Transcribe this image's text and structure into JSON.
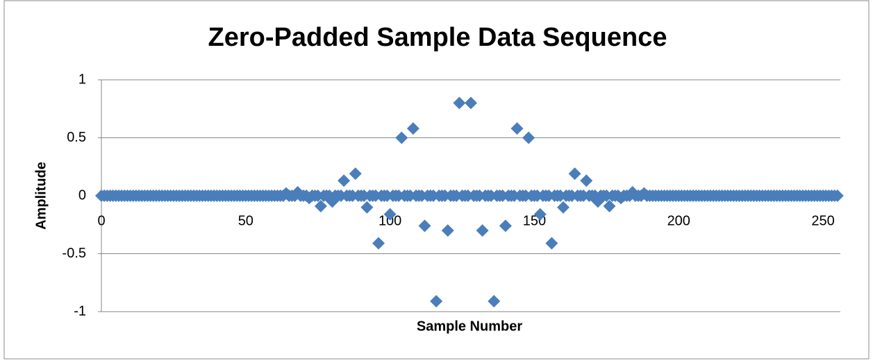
{
  "chart_data": {
    "type": "scatter",
    "title": "Zero-Padded  Sample Data Sequence",
    "x_label": "Sample Number",
    "y_label": "Amplitude",
    "color": "#4a7ebb",
    "marker": "diamond",
    "grid": true,
    "xlim": [
      0,
      256
    ],
    "xticks": [
      0,
      50,
      100,
      150,
      200,
      250
    ],
    "ylim": [
      -1,
      1
    ],
    "yticks": [
      1,
      0.5,
      0,
      -0.5,
      -1
    ],
    "x": [
      0,
      1,
      2,
      3,
      4,
      5,
      6,
      7,
      8,
      9,
      10,
      11,
      12,
      13,
      14,
      15,
      16,
      17,
      18,
      19,
      20,
      21,
      22,
      23,
      24,
      25,
      26,
      27,
      28,
      29,
      30,
      31,
      32,
      33,
      34,
      35,
      36,
      37,
      38,
      39,
      40,
      41,
      42,
      43,
      44,
      45,
      46,
      47,
      48,
      49,
      50,
      51,
      52,
      53,
      54,
      55,
      56,
      57,
      58,
      59,
      60,
      61,
      62,
      63,
      64,
      65,
      66,
      67,
      68,
      69,
      70,
      71,
      72,
      73,
      74,
      75,
      76,
      77,
      78,
      79,
      80,
      81,
      82,
      83,
      84,
      85,
      86,
      87,
      88,
      89,
      90,
      91,
      92,
      93,
      94,
      95,
      96,
      97,
      98,
      99,
      100,
      101,
      102,
      103,
      104,
      105,
      106,
      107,
      108,
      109,
      110,
      111,
      112,
      113,
      114,
      115,
      116,
      117,
      118,
      119,
      120,
      121,
      122,
      123,
      124,
      125,
      126,
      127,
      128,
      129,
      130,
      131,
      132,
      133,
      134,
      135,
      136,
      137,
      138,
      139,
      140,
      141,
      142,
      143,
      144,
      145,
      146,
      147,
      148,
      149,
      150,
      151,
      152,
      153,
      154,
      155,
      156,
      157,
      158,
      159,
      160,
      161,
      162,
      163,
      164,
      165,
      166,
      167,
      168,
      169,
      170,
      171,
      172,
      173,
      174,
      175,
      176,
      177,
      178,
      179,
      180,
      181,
      182,
      183,
      184,
      185,
      186,
      187,
      188,
      189,
      190,
      191,
      192,
      193,
      194,
      195,
      196,
      197,
      198,
      199,
      200,
      201,
      202,
      203,
      204,
      205,
      206,
      207,
      208,
      209,
      210,
      211,
      212,
      213,
      214,
      215,
      216,
      217,
      218,
      219,
      220,
      221,
      222,
      223,
      224,
      225,
      226,
      227,
      228,
      229,
      230,
      231,
      232,
      233,
      234,
      235,
      236,
      237,
      238,
      239,
      240,
      241,
      242,
      243,
      244,
      245,
      246,
      247,
      248,
      249,
      250,
      251,
      252,
      253,
      254,
      255
    ],
    "values": [
      0,
      0,
      0,
      0,
      0,
      0,
      0,
      0,
      0,
      0,
      0,
      0,
      0,
      0,
      0,
      0,
      0,
      0,
      0,
      0,
      0,
      0,
      0,
      0,
      0,
      0,
      0,
      0,
      0,
      0,
      0,
      0,
      0,
      0,
      0,
      0,
      0,
      0,
      0,
      0,
      0,
      0,
      0,
      0,
      0,
      0,
      0,
      0,
      0,
      0,
      0,
      0,
      0,
      0,
      0,
      0,
      0,
      0,
      0,
      0,
      0,
      0,
      0,
      0,
      0.02,
      0,
      0,
      0,
      0.03,
      0,
      0,
      0,
      -0.02,
      0,
      0,
      0,
      -0.09,
      0,
      0,
      0,
      -0.05,
      0,
      0,
      0,
      0.13,
      0,
      0,
      0,
      0.19,
      0,
      0,
      0,
      -0.1,
      0,
      0,
      0,
      -0.41,
      0,
      0,
      0,
      -0.16,
      0,
      0,
      0,
      0.5,
      0,
      0,
      0,
      0.58,
      0,
      0,
      0,
      -0.26,
      0,
      0,
      0,
      -0.91,
      0,
      0,
      0,
      -0.3,
      0,
      0,
      0,
      0.8,
      0,
      0,
      0,
      0.8,
      0,
      0,
      0,
      -0.3,
      0,
      0,
      0,
      -0.91,
      0,
      0,
      0,
      -0.26,
      0,
      0,
      0,
      0.58,
      0,
      0,
      0,
      0.5,
      0,
      0,
      0,
      -0.16,
      0,
      0,
      0,
      -0.41,
      0,
      0,
      0,
      -0.1,
      0,
      0,
      0,
      0.19,
      0,
      0,
      0,
      0.13,
      0,
      0,
      0,
      -0.05,
      0,
      0,
      0,
      -0.09,
      0,
      0,
      0,
      -0.02,
      0,
      0,
      0,
      0.03,
      0,
      0,
      0,
      0.02,
      0,
      0,
      0,
      0,
      0,
      0,
      0,
      0,
      0,
      0,
      0,
      0,
      0,
      0,
      0,
      0,
      0,
      0,
      0,
      0,
      0,
      0,
      0,
      0,
      0,
      0,
      0,
      0,
      0,
      0,
      0,
      0,
      0,
      0,
      0,
      0,
      0,
      0,
      0,
      0,
      0,
      0,
      0,
      0,
      0,
      0,
      0,
      0,
      0,
      0,
      0,
      0,
      0,
      0,
      0,
      0,
      0,
      0,
      0,
      0,
      0,
      0,
      0,
      0,
      0,
      0,
      0
    ]
  }
}
